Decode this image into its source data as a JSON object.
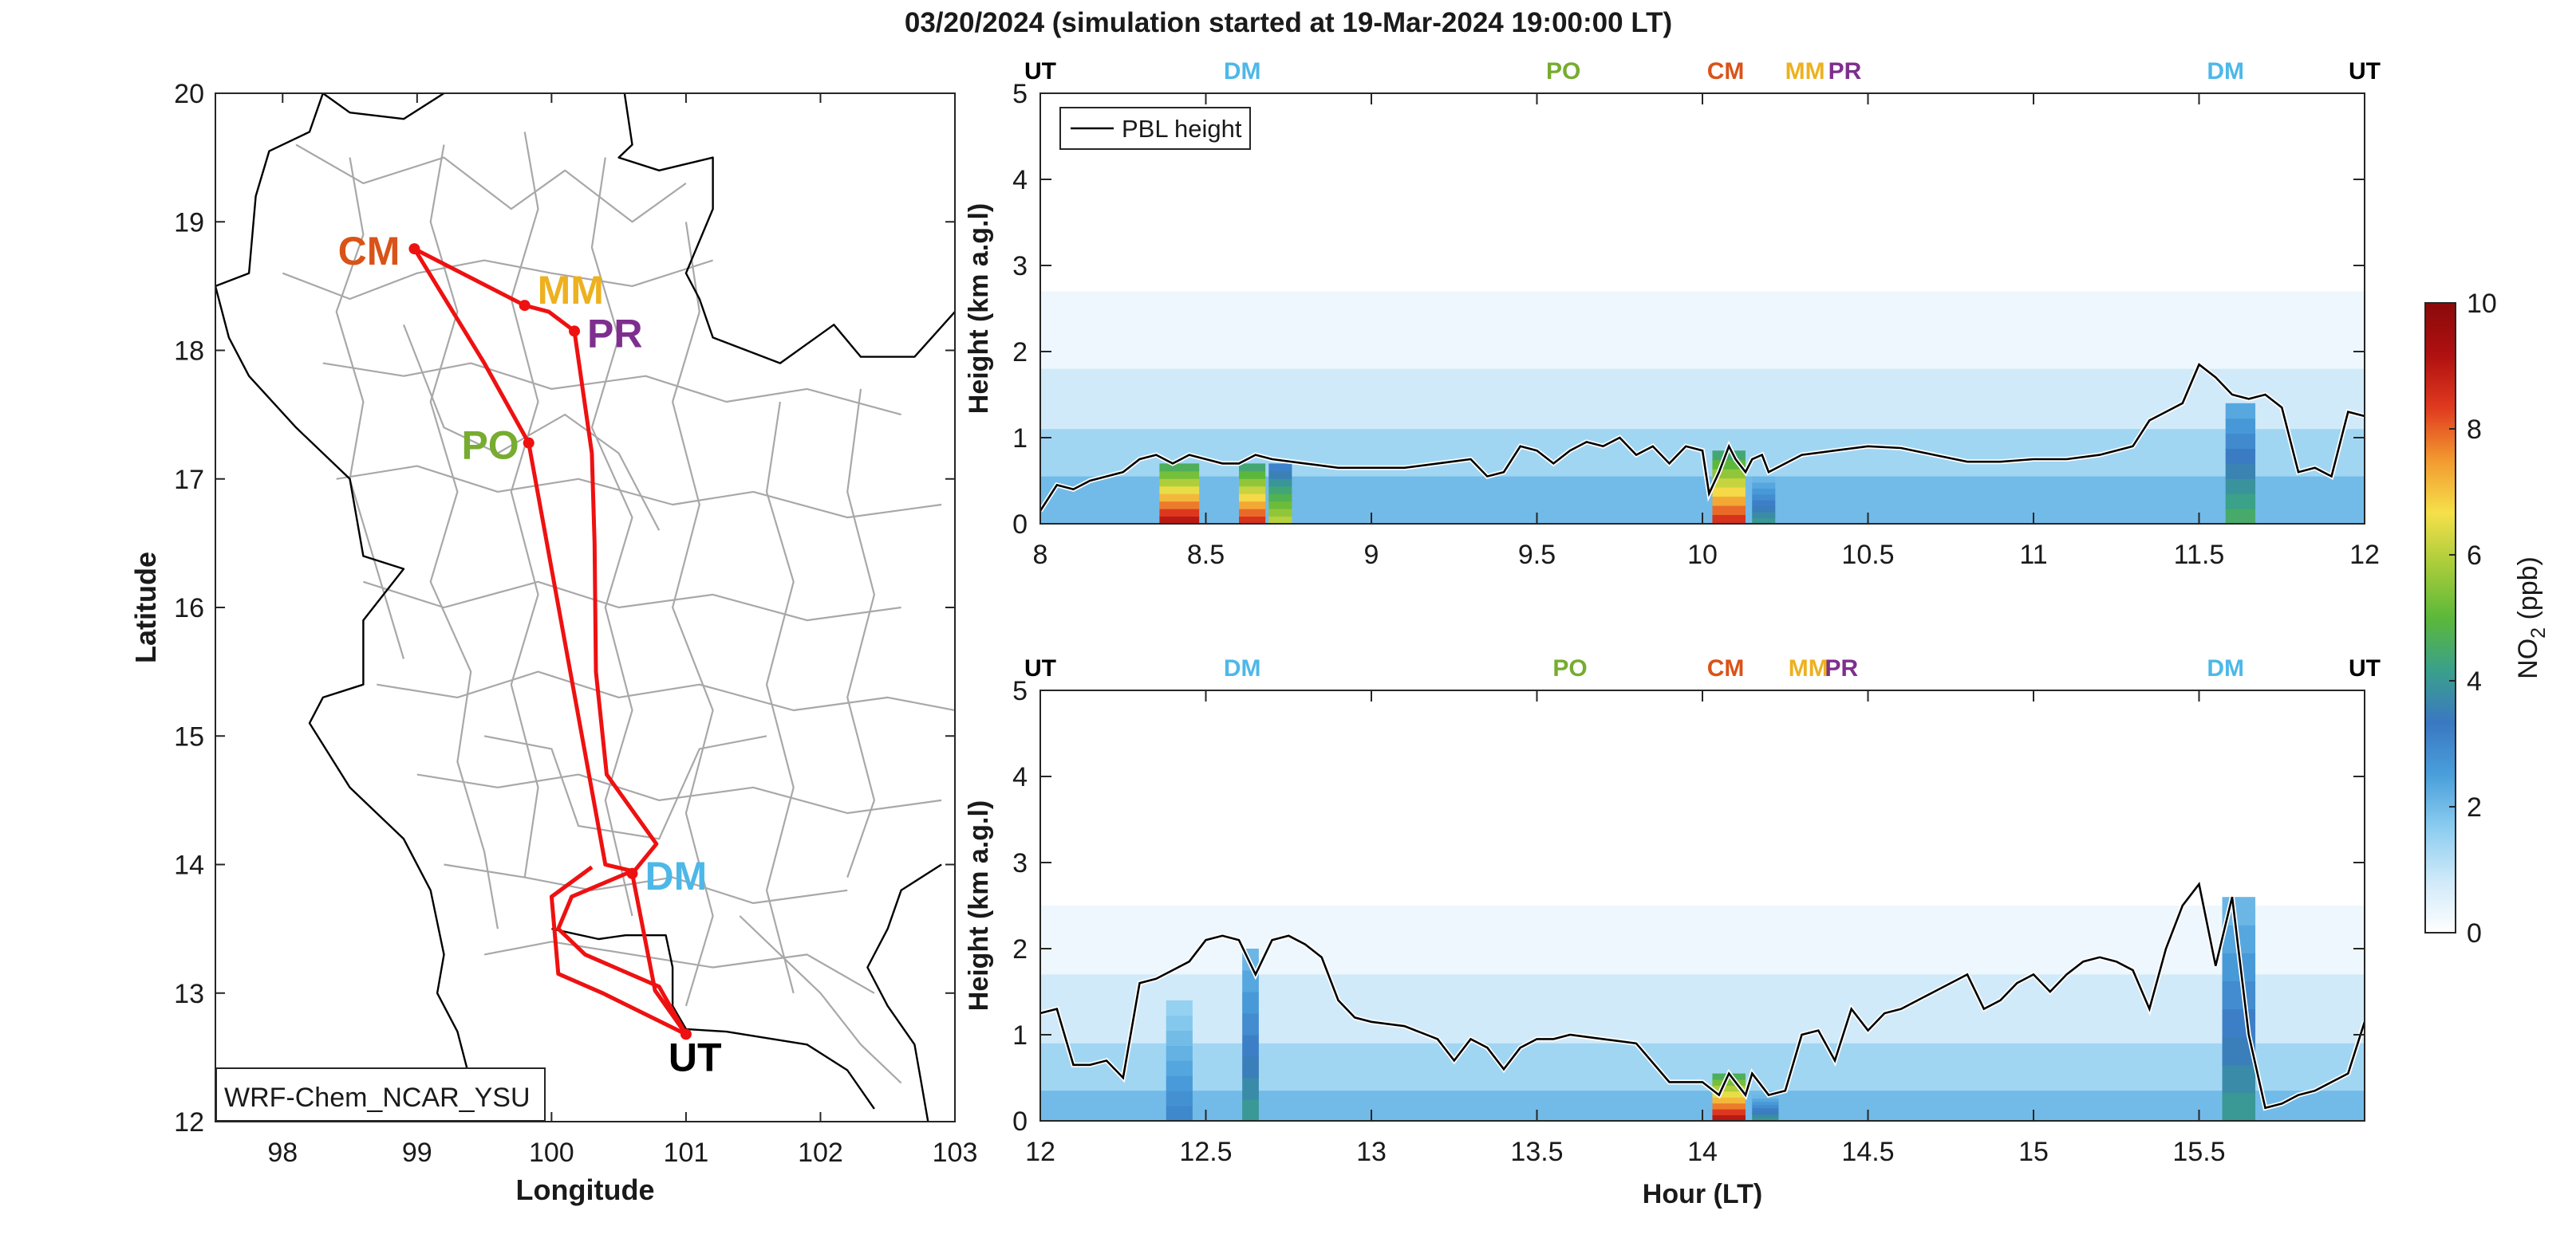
{
  "figure": {
    "title": "03/20/2024 (simulation started at 19-Mar-2024 19:00:00 LT)"
  },
  "colors": {
    "route": "#ee1111",
    "pbl_line": "#000000",
    "border_major": "#000000",
    "border_minor": "#a8a8a8",
    "stations": {
      "UT": "#000000",
      "DM": "#4db8e8",
      "PO": "#77ac30",
      "CM": "#d95319",
      "MM": "#edb120",
      "PR": "#7e2f8e"
    }
  },
  "chart_data": [
    {
      "type": "map",
      "xlabel": "Longitude",
      "ylabel": "Latitude",
      "xlim": [
        97.5,
        103
      ],
      "ylim": [
        12,
        20
      ],
      "xticks": [
        "98",
        "99",
        "100",
        "101",
        "102",
        "103"
      ],
      "yticks": [
        "12",
        "13",
        "14",
        "15",
        "16",
        "17",
        "18",
        "19",
        "20"
      ],
      "model_label": "WRF-Chem_NCAR_YSU",
      "stations": [
        {
          "code": "CM",
          "lon": 98.98,
          "lat": 18.79
        },
        {
          "code": "MM",
          "lon": 99.8,
          "lat": 18.35
        },
        {
          "code": "PR",
          "lon": 100.17,
          "lat": 18.15
        },
        {
          "code": "PO",
          "lon": 99.83,
          "lat": 17.28
        },
        {
          "code": "DM",
          "lon": 100.6,
          "lat": 13.93
        },
        {
          "code": "UT",
          "lon": 101.0,
          "lat": 12.68
        }
      ],
      "route": [
        [
          101.0,
          12.68
        ],
        [
          100.77,
          13.02
        ],
        [
          100.6,
          13.93
        ],
        [
          100.78,
          14.16
        ],
        [
          100.41,
          14.7
        ],
        [
          100.33,
          15.5
        ],
        [
          100.32,
          16.5
        ],
        [
          100.3,
          17.2
        ],
        [
          100.17,
          18.15
        ],
        [
          99.98,
          18.3
        ],
        [
          99.8,
          18.35
        ],
        [
          98.98,
          18.79
        ],
        [
          99.5,
          17.9
        ],
        [
          99.83,
          17.28
        ],
        [
          100.4,
          14.0
        ],
        [
          100.6,
          13.95
        ],
        [
          100.15,
          13.75
        ],
        [
          100.05,
          13.5
        ],
        [
          100.25,
          13.3
        ],
        [
          100.8,
          13.05
        ],
        [
          101.0,
          12.68
        ],
        [
          100.38,
          13.0
        ],
        [
          100.05,
          13.15
        ],
        [
          100.0,
          13.75
        ],
        [
          100.3,
          13.98
        ]
      ]
    },
    {
      "type": "heatmap",
      "panel": "top",
      "xlabel": "",
      "ylabel": "Height (km a.g.l)",
      "xlim": [
        8,
        12
      ],
      "ylim": [
        0,
        5
      ],
      "xticks": [
        "8",
        "8.5",
        "9",
        "9.5",
        "10",
        "10.5",
        "11",
        "11.5",
        "12"
      ],
      "yticks": [
        "0",
        "1",
        "2",
        "3",
        "4",
        "5"
      ],
      "legend": "PBL height",
      "top_labels": [
        {
          "code": "UT",
          "x": 8.0
        },
        {
          "code": "DM",
          "x": 8.61
        },
        {
          "code": "PO",
          "x": 9.58
        },
        {
          "code": "CM",
          "x": 10.07
        },
        {
          "code": "MM",
          "x": 10.31
        },
        {
          "code": "PR",
          "x": 10.43
        },
        {
          "code": "DM",
          "x": 11.58
        },
        {
          "code": "UT",
          "x": 12.0
        }
      ],
      "pbl_height": {
        "x": [
          8.0,
          8.05,
          8.1,
          8.15,
          8.2,
          8.25,
          8.3,
          8.35,
          8.4,
          8.45,
          8.5,
          8.55,
          8.6,
          8.65,
          8.7,
          8.8,
          8.9,
          9.0,
          9.1,
          9.2,
          9.3,
          9.35,
          9.4,
          9.45,
          9.5,
          9.55,
          9.6,
          9.65,
          9.7,
          9.75,
          9.8,
          9.85,
          9.9,
          9.95,
          10.0,
          10.02,
          10.05,
          10.08,
          10.1,
          10.13,
          10.15,
          10.18,
          10.2,
          10.25,
          10.3,
          10.4,
          10.5,
          10.6,
          10.7,
          10.8,
          10.9,
          11.0,
          11.1,
          11.2,
          11.3,
          11.35,
          11.4,
          11.45,
          11.5,
          11.55,
          11.6,
          11.65,
          11.7,
          11.75,
          11.8,
          11.85,
          11.9,
          11.95,
          12.0
        ],
        "y": [
          0.15,
          0.45,
          0.4,
          0.5,
          0.55,
          0.6,
          0.75,
          0.8,
          0.7,
          0.8,
          0.75,
          0.7,
          0.7,
          0.8,
          0.75,
          0.7,
          0.65,
          0.65,
          0.65,
          0.7,
          0.75,
          0.55,
          0.6,
          0.9,
          0.85,
          0.7,
          0.85,
          0.95,
          0.9,
          1.0,
          0.8,
          0.9,
          0.7,
          0.9,
          0.85,
          0.35,
          0.6,
          0.9,
          0.75,
          0.6,
          0.75,
          0.8,
          0.6,
          0.7,
          0.8,
          0.85,
          0.9,
          0.88,
          0.8,
          0.72,
          0.72,
          0.75,
          0.75,
          0.8,
          0.9,
          1.2,
          1.3,
          1.4,
          1.85,
          1.7,
          1.5,
          1.45,
          1.5,
          1.35,
          0.6,
          0.65,
          0.55,
          1.3,
          1.25
        ]
      },
      "no2_background_ppb": [
        {
          "x0": 8.0,
          "x1": 12.0,
          "y0": 0.0,
          "y1": 2.7,
          "value": 0.3
        },
        {
          "x0": 8.0,
          "x1": 12.0,
          "y0": 0.0,
          "y1": 1.8,
          "value": 0.8
        },
        {
          "x0": 8.0,
          "x1": 12.0,
          "y0": 0.0,
          "y1": 1.1,
          "value": 1.4
        },
        {
          "x0": 8.0,
          "x1": 12.0,
          "y0": 0.0,
          "y1": 0.55,
          "value": 2.0
        }
      ],
      "no2_columns_ppb": [
        {
          "x0": 8.36,
          "x1": 8.48,
          "top": 0.7,
          "value": 9.0
        },
        {
          "x0": 8.6,
          "x1": 8.68,
          "top": 0.7,
          "value": 8.5
        },
        {
          "x0": 8.69,
          "x1": 8.76,
          "top": 0.7,
          "value": 6.0
        },
        {
          "x0": 10.03,
          "x1": 10.13,
          "top": 0.85,
          "value": 8.5
        },
        {
          "x0": 10.15,
          "x1": 10.22,
          "top": 0.55,
          "value": 4.0
        },
        {
          "x0": 11.58,
          "x1": 11.67,
          "top": 1.4,
          "value": 4.5
        }
      ]
    },
    {
      "type": "heatmap",
      "panel": "bottom",
      "xlabel": "Hour (LT)",
      "ylabel": "Height (km a.g.l)",
      "xlim": [
        12,
        16
      ],
      "ylim": [
        0,
        5
      ],
      "xticks": [
        "12",
        "12.5",
        "13",
        "13.5",
        "14",
        "14.5",
        "15",
        "15.5"
      ],
      "yticks": [
        "0",
        "1",
        "2",
        "3",
        "4",
        "5"
      ],
      "top_labels": [
        {
          "code": "UT",
          "x": 12.0
        },
        {
          "code": "DM",
          "x": 12.61
        },
        {
          "code": "PO",
          "x": 13.6
        },
        {
          "code": "CM",
          "x": 14.07
        },
        {
          "code": "MM",
          "x": 14.32
        },
        {
          "code": "PR",
          "x": 14.42
        },
        {
          "code": "DM",
          "x": 15.58
        },
        {
          "code": "UT",
          "x": 16.0
        }
      ],
      "pbl_height": {
        "x": [
          12.0,
          12.05,
          12.1,
          12.15,
          12.2,
          12.25,
          12.3,
          12.35,
          12.4,
          12.45,
          12.5,
          12.55,
          12.6,
          12.65,
          12.7,
          12.75,
          12.8,
          12.85,
          12.9,
          12.95,
          13.0,
          13.1,
          13.2,
          13.25,
          13.3,
          13.35,
          13.4,
          13.45,
          13.5,
          13.55,
          13.6,
          13.7,
          13.8,
          13.9,
          14.0,
          14.05,
          14.08,
          14.1,
          14.13,
          14.15,
          14.2,
          14.25,
          14.3,
          14.35,
          14.4,
          14.45,
          14.5,
          14.55,
          14.6,
          14.7,
          14.8,
          14.85,
          14.9,
          14.95,
          15.0,
          15.05,
          15.1,
          15.15,
          15.2,
          15.25,
          15.3,
          15.35,
          15.4,
          15.45,
          15.5,
          15.55,
          15.6,
          15.65,
          15.7,
          15.75,
          15.8,
          15.85,
          15.9,
          15.95,
          16.0
        ],
        "y": [
          1.25,
          1.3,
          0.65,
          0.65,
          0.7,
          0.5,
          1.6,
          1.65,
          1.75,
          1.85,
          2.1,
          2.15,
          2.1,
          1.7,
          2.1,
          2.15,
          2.05,
          1.9,
          1.4,
          1.2,
          1.15,
          1.1,
          0.95,
          0.7,
          0.95,
          0.85,
          0.6,
          0.85,
          0.95,
          0.95,
          1.0,
          0.95,
          0.9,
          0.45,
          0.45,
          0.3,
          0.55,
          0.45,
          0.3,
          0.55,
          0.3,
          0.35,
          1.0,
          1.05,
          0.7,
          1.3,
          1.05,
          1.25,
          1.3,
          1.5,
          1.7,
          1.3,
          1.4,
          1.6,
          1.7,
          1.5,
          1.7,
          1.85,
          1.9,
          1.85,
          1.75,
          1.3,
          2.0,
          2.5,
          2.75,
          1.8,
          2.6,
          1.0,
          0.15,
          0.2,
          0.3,
          0.35,
          0.45,
          0.55,
          1.15
        ]
      },
      "no2_background_ppb": [
        {
          "x0": 12.0,
          "x1": 16.0,
          "y0": 0.0,
          "y1": 2.5,
          "value": 0.3
        },
        {
          "x0": 12.0,
          "x1": 16.0,
          "y0": 0.0,
          "y1": 1.7,
          "value": 0.8
        },
        {
          "x0": 12.0,
          "x1": 16.0,
          "y0": 0.0,
          "y1": 0.9,
          "value": 1.4
        },
        {
          "x0": 12.0,
          "x1": 16.0,
          "y0": 0.0,
          "y1": 0.35,
          "value": 2.0
        }
      ],
      "no2_columns_ppb": [
        {
          "x0": 12.38,
          "x1": 12.46,
          "top": 1.4,
          "value": 3.0
        },
        {
          "x0": 12.61,
          "x1": 12.66,
          "top": 2.0,
          "value": 4.0
        },
        {
          "x0": 14.03,
          "x1": 14.13,
          "top": 0.55,
          "value": 9.0
        },
        {
          "x0": 14.15,
          "x1": 14.23,
          "top": 0.3,
          "value": 4.0
        },
        {
          "x0": 15.57,
          "x1": 15.67,
          "top": 2.6,
          "value": 4.0
        }
      ]
    }
  ],
  "colorbar": {
    "label_prefix": "NO",
    "label_subscript": "2",
    "label_suffix": " (ppb)",
    "ticks": [
      "0",
      "2",
      "4",
      "6",
      "8",
      "10"
    ],
    "range": [
      0,
      10
    ],
    "gradient": [
      "#ffffff",
      "#cfe9f9",
      "#8ccdf0",
      "#4a9fdb",
      "#3a78c2",
      "#3aa08a",
      "#5cb83a",
      "#a8cc3a",
      "#f5e04a",
      "#f29a30",
      "#e03a1f",
      "#b01010",
      "#8a0a0a"
    ]
  }
}
